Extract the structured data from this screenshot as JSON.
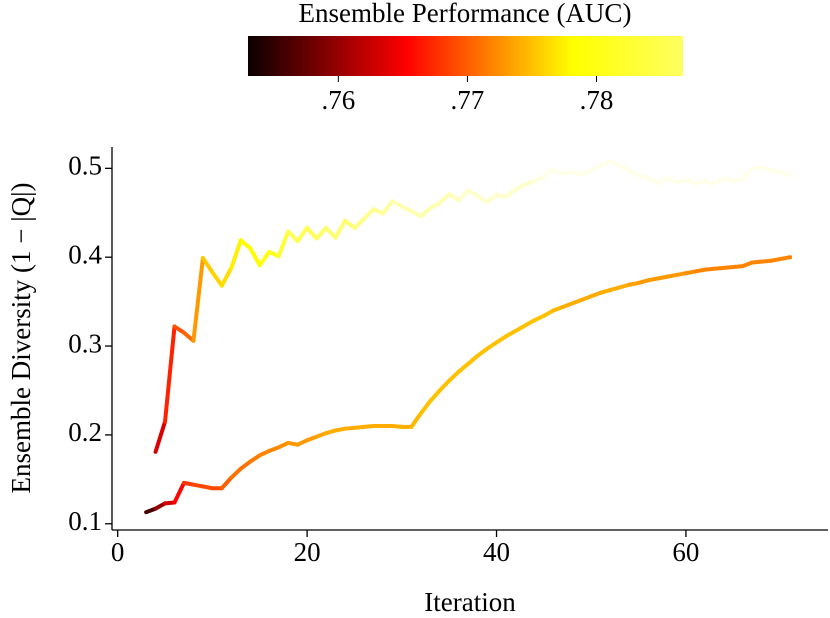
{
  "chart_data": {
    "type": "line",
    "xlabel": "Iteration",
    "ylabel": "Ensemble Diversity (1 − |Q|)",
    "colorbar": {
      "title": "Ensemble Performance (AUC)",
      "colormap": "hot",
      "lim": [
        0.753,
        0.7867
      ],
      "ticks": [
        {
          "value": 0.76,
          "label": ".76"
        },
        {
          "value": 0.77,
          "label": ".77"
        },
        {
          "value": 0.78,
          "label": ".78"
        }
      ]
    },
    "xlim": [
      -0.6,
      75
    ],
    "xticks": [
      0,
      20,
      40,
      60
    ],
    "ylim": [
      0.093,
      0.524
    ],
    "yticks": [
      0.1,
      0.2,
      0.3,
      0.4,
      0.5
    ],
    "series": [
      {
        "x": [
          4,
          5,
          6,
          7,
          8,
          9,
          10,
          11,
          12,
          13,
          14,
          15,
          16,
          17,
          18,
          19,
          20,
          21,
          22,
          23,
          24,
          25,
          26,
          27,
          28,
          29,
          30,
          31,
          32,
          33,
          34,
          35,
          36,
          37,
          38,
          39,
          40,
          41,
          42,
          43,
          44,
          45,
          46,
          47,
          48,
          49,
          50,
          51,
          52,
          53,
          54,
          55,
          56,
          57,
          58,
          59,
          60,
          61,
          62,
          63,
          64,
          65,
          66,
          67,
          68,
          69,
          70,
          71
        ],
        "values": [
          0.181,
          0.215,
          0.322,
          0.315,
          0.306,
          0.399,
          0.383,
          0.368,
          0.388,
          0.419,
          0.41,
          0.391,
          0.406,
          0.401,
          0.429,
          0.418,
          0.433,
          0.421,
          0.433,
          0.422,
          0.441,
          0.433,
          0.443,
          0.454,
          0.449,
          0.463,
          0.457,
          0.452,
          0.446,
          0.455,
          0.461,
          0.471,
          0.464,
          0.475,
          0.469,
          0.462,
          0.47,
          0.468,
          0.476,
          0.482,
          0.485,
          0.491,
          0.498,
          0.494,
          0.496,
          0.493,
          0.498,
          0.503,
          0.508,
          0.503,
          0.498,
          0.492,
          0.489,
          0.483,
          0.489,
          0.484,
          0.487,
          0.483,
          0.485,
          0.483,
          0.489,
          0.485,
          0.489,
          0.499,
          0.501,
          0.498,
          0.496,
          0.492
        ],
        "auc": [
          0.762,
          0.765,
          0.769,
          0.77,
          0.771,
          0.775,
          0.776,
          0.776,
          0.777,
          0.778,
          0.778,
          0.778,
          0.779,
          0.779,
          0.781,
          0.781,
          0.781,
          0.781,
          0.782,
          0.782,
          0.782,
          0.782,
          0.783,
          0.783,
          0.783,
          0.784,
          0.784,
          0.784,
          0.784,
          0.784,
          0.784,
          0.784,
          0.785,
          0.785,
          0.785,
          0.785,
          0.785,
          0.785,
          0.785,
          0.785,
          0.785,
          0.786,
          0.786,
          0.786,
          0.786,
          0.786,
          0.786,
          0.786,
          0.786,
          0.786,
          0.786,
          0.786,
          0.786,
          0.786,
          0.786,
          0.786,
          0.786,
          0.786,
          0.786,
          0.786,
          0.786,
          0.786,
          0.786,
          0.786,
          0.786,
          0.786,
          0.786,
          0.786
        ]
      },
      {
        "x": [
          3,
          4,
          5,
          6,
          7,
          8,
          9,
          10,
          11,
          12,
          13,
          14,
          15,
          16,
          17,
          18,
          19,
          20,
          21,
          22,
          23,
          24,
          25,
          26,
          27,
          28,
          29,
          30,
          31,
          32,
          33,
          34,
          35,
          36,
          37,
          38,
          39,
          40,
          41,
          42,
          43,
          44,
          45,
          46,
          47,
          48,
          49,
          50,
          51,
          52,
          53,
          54,
          55,
          56,
          57,
          58,
          59,
          60,
          61,
          62,
          63,
          64,
          65,
          66,
          67,
          68,
          69,
          70,
          71
        ],
        "values": [
          0.113,
          0.117,
          0.123,
          0.124,
          0.146,
          0.144,
          0.142,
          0.14,
          0.14,
          0.152,
          0.162,
          0.17,
          0.177,
          0.182,
          0.186,
          0.191,
          0.189,
          0.194,
          0.198,
          0.202,
          0.205,
          0.207,
          0.208,
          0.209,
          0.21,
          0.21,
          0.21,
          0.209,
          0.209,
          0.224,
          0.238,
          0.25,
          0.261,
          0.271,
          0.28,
          0.289,
          0.297,
          0.304,
          0.311,
          0.317,
          0.323,
          0.329,
          0.334,
          0.34,
          0.344,
          0.348,
          0.352,
          0.356,
          0.36,
          0.363,
          0.366,
          0.369,
          0.371,
          0.374,
          0.376,
          0.378,
          0.38,
          0.382,
          0.384,
          0.386,
          0.387,
          0.388,
          0.389,
          0.39,
          0.394,
          0.395,
          0.396,
          0.398,
          0.4
        ],
        "auc": [
          0.754,
          0.758,
          0.762,
          0.764,
          0.767,
          0.769,
          0.769,
          0.769,
          0.769,
          0.771,
          0.771,
          0.771,
          0.772,
          0.772,
          0.772,
          0.773,
          0.773,
          0.773,
          0.773,
          0.774,
          0.774,
          0.774,
          0.774,
          0.774,
          0.774,
          0.774,
          0.774,
          0.774,
          0.774,
          0.775,
          0.775,
          0.775,
          0.775,
          0.775,
          0.775,
          0.775,
          0.775,
          0.775,
          0.775,
          0.775,
          0.775,
          0.775,
          0.775,
          0.775,
          0.774,
          0.774,
          0.774,
          0.774,
          0.774,
          0.774,
          0.774,
          0.774,
          0.773,
          0.773,
          0.773,
          0.773,
          0.773,
          0.773,
          0.772,
          0.772,
          0.772,
          0.772,
          0.772,
          0.772,
          0.772,
          0.772,
          0.772,
          0.772,
          0.772
        ]
      }
    ]
  }
}
